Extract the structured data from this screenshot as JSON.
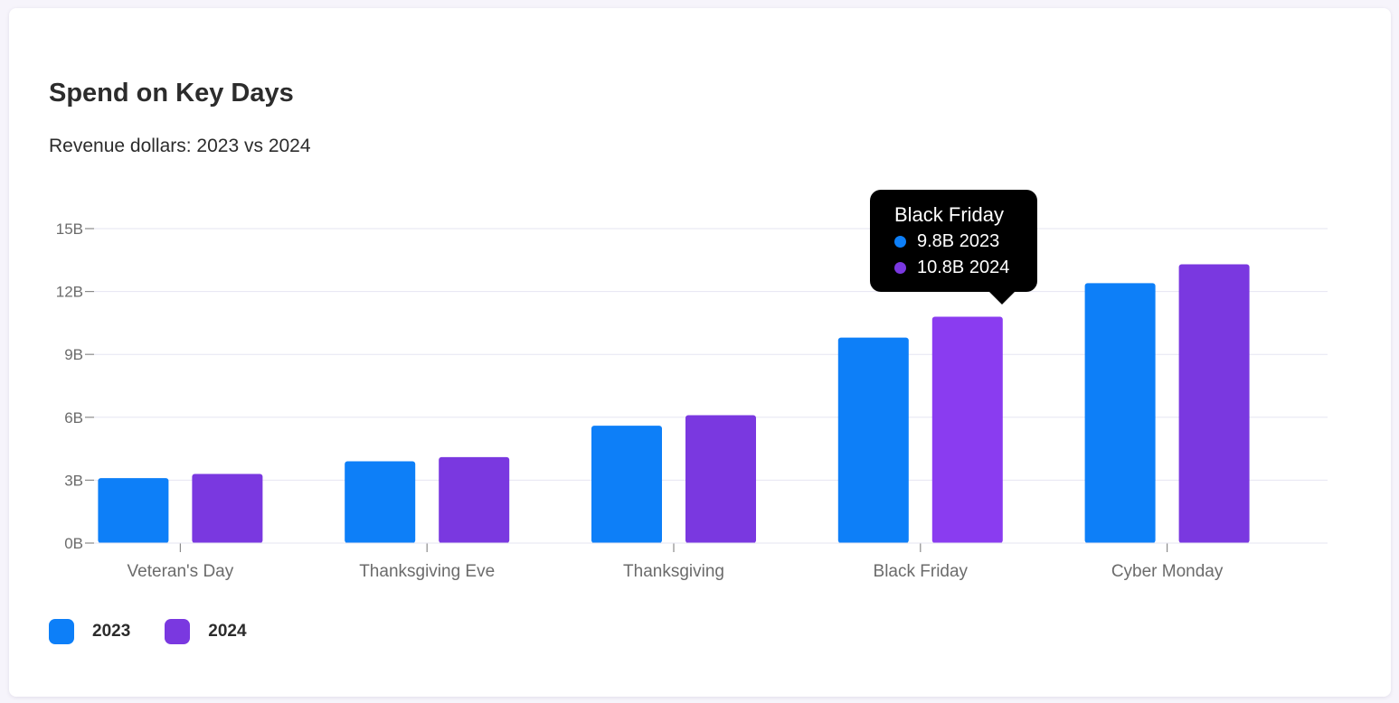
{
  "colors": {
    "series_2023": "#0d7ff8",
    "series_2024": "#7a38e0",
    "series_2024_highlight": "#8a3cf0",
    "grid": "#e6e5f2",
    "axis_text": "#6b6b6b"
  },
  "chart_data": {
    "type": "bar",
    "title": "Spend on Key Days",
    "subtitle": "Revenue dollars: 2023 vs 2024",
    "categories": [
      "Veteran's Day",
      "Thanksgiving Eve",
      "Thanksgiving",
      "Black Friday",
      "Cyber Monday"
    ],
    "series": [
      {
        "name": "2023",
        "values": [
          3.1,
          3.9,
          5.6,
          9.8,
          12.4
        ]
      },
      {
        "name": "2024",
        "values": [
          3.3,
          4.1,
          6.1,
          10.8,
          13.3
        ]
      }
    ],
    "ylim": [
      0,
      15
    ],
    "yticks": [
      0,
      3,
      6,
      9,
      12,
      15
    ],
    "ytick_labels": [
      "0B",
      "3B",
      "6B",
      "9B",
      "12B",
      "15B"
    ],
    "xlabel": "",
    "ylabel": "",
    "grid": true,
    "legend_position": "bottom-left",
    "highlighted_category": "Black Friday"
  },
  "legend": {
    "items": [
      {
        "label": "2023"
      },
      {
        "label": "2024"
      }
    ]
  },
  "tooltip": {
    "title": "Black Friday",
    "rows": [
      {
        "text": "9.8B 2023"
      },
      {
        "text": "10.8B 2024"
      }
    ]
  }
}
